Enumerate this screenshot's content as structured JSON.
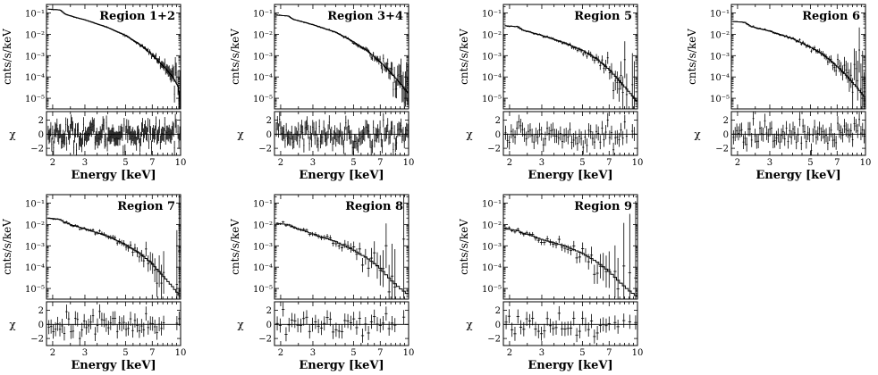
{
  "figure": {
    "xlabel": "Energy [keV]",
    "ylabel_top": "cnts/s/keV",
    "ylabel_bottom": "χ",
    "x_ticks": [
      2,
      3,
      5,
      7,
      10
    ],
    "y_ticks_top": [
      "10⁻⁵",
      "10⁻⁴",
      "10⁻³",
      "10⁻²",
      "10⁻¹"
    ],
    "y_ticks_bottom": [
      "2",
      "0",
      "−2"
    ]
  },
  "chart_data": [
    {
      "type": "scatter",
      "title": "Region 1+2",
      "xlabel": "Energy [keV]",
      "ylabel": "cnts/s/keV",
      "xscale": "log",
      "yscale": "log",
      "xlim": [
        1.85,
        10
      ],
      "ylim_log10": [
        -5.5,
        -0.6
      ],
      "resid_ylim": [
        -3,
        3.2
      ],
      "n_bins": 150,
      "err_scale": 0.7,
      "model_log10": [
        [
          1.9,
          -0.82
        ],
        [
          2.2,
          -0.86
        ],
        [
          2.35,
          -1.06
        ],
        [
          2.6,
          -1.18
        ],
        [
          3,
          -1.32
        ],
        [
          4,
          -1.68
        ],
        [
          5,
          -2.05
        ],
        [
          6,
          -2.48
        ],
        [
          7,
          -2.96
        ],
        [
          8,
          -3.46
        ],
        [
          9,
          -3.95
        ],
        [
          9.7,
          -4.45
        ],
        [
          10,
          -5.3
        ]
      ]
    },
    {
      "type": "scatter",
      "title": "Region 3+4",
      "xlabel": "Energy [keV]",
      "ylabel": "cnts/s/keV",
      "xscale": "log",
      "yscale": "log",
      "xlim": [
        1.85,
        10
      ],
      "ylim_log10": [
        -5.5,
        -0.6
      ],
      "resid_ylim": [
        -3,
        3.2
      ],
      "n_bins": 120,
      "err_scale": 0.8,
      "model_log10": [
        [
          1.9,
          -1.1
        ],
        [
          2.2,
          -1.14
        ],
        [
          2.35,
          -1.3
        ],
        [
          2.6,
          -1.4
        ],
        [
          3,
          -1.55
        ],
        [
          4,
          -1.9
        ],
        [
          5,
          -2.35
        ],
        [
          6,
          -2.8
        ],
        [
          7,
          -3.3
        ],
        [
          8,
          -3.8
        ],
        [
          9,
          -4.3
        ],
        [
          10,
          -4.8
        ]
      ]
    },
    {
      "type": "scatter",
      "title": "Region 5",
      "xlabel": "Energy [keV]",
      "ylabel": "cnts/s/keV",
      "xscale": "log",
      "yscale": "log",
      "xlim": [
        1.85,
        10
      ],
      "ylim_log10": [
        -5.5,
        -0.6
      ],
      "resid_ylim": [
        -3,
        3.2
      ],
      "n_bins": 70,
      "err_scale": 1.0,
      "model_log10": [
        [
          1.9,
          -1.6
        ],
        [
          2.2,
          -1.64
        ],
        [
          2.35,
          -1.8
        ],
        [
          2.6,
          -1.9
        ],
        [
          3,
          -2.05
        ],
        [
          4,
          -2.4
        ],
        [
          5,
          -2.75
        ],
        [
          6,
          -3.15
        ],
        [
          7,
          -3.65
        ],
        [
          8,
          -4.2
        ],
        [
          9,
          -4.7
        ],
        [
          10,
          -5.2
        ]
      ]
    },
    {
      "type": "scatter",
      "title": "Region 6",
      "xlabel": "Energy [keV]",
      "ylabel": "cnts/s/keV",
      "xscale": "log",
      "yscale": "log",
      "xlim": [
        1.85,
        10
      ],
      "ylim_log10": [
        -5.5,
        -0.6
      ],
      "resid_ylim": [
        -3,
        3.2
      ],
      "n_bins": 80,
      "err_scale": 1.0,
      "model_log10": [
        [
          1.9,
          -1.4
        ],
        [
          2.2,
          -1.44
        ],
        [
          2.35,
          -1.62
        ],
        [
          2.6,
          -1.72
        ],
        [
          3,
          -1.85
        ],
        [
          4,
          -2.2
        ],
        [
          5,
          -2.6
        ],
        [
          6,
          -3.0
        ],
        [
          7,
          -3.5
        ],
        [
          8,
          -4.0
        ],
        [
          9,
          -4.5
        ],
        [
          10,
          -5.0
        ]
      ]
    },
    {
      "type": "scatter",
      "title": "Region 7",
      "xlabel": "Energy [keV]",
      "ylabel": "cnts/s/keV",
      "xscale": "log",
      "yscale": "log",
      "xlim": [
        1.85,
        10
      ],
      "ylim_log10": [
        -5.5,
        -0.6
      ],
      "resid_ylim": [
        -3,
        3.2
      ],
      "n_bins": 60,
      "err_scale": 1.2,
      "model_log10": [
        [
          1.9,
          -1.7
        ],
        [
          2.2,
          -1.76
        ],
        [
          2.35,
          -1.92
        ],
        [
          2.6,
          -2.05
        ],
        [
          3,
          -2.2
        ],
        [
          4,
          -2.55
        ],
        [
          5,
          -2.95
        ],
        [
          6,
          -3.35
        ],
        [
          7,
          -3.85
        ],
        [
          8,
          -4.4
        ],
        [
          9,
          -4.9
        ],
        [
          10,
          -5.4
        ]
      ]
    },
    {
      "type": "scatter",
      "title": "Region 8",
      "xlabel": "Energy [keV]",
      "ylabel": "cnts/s/keV",
      "xscale": "log",
      "yscale": "log",
      "xlim": [
        1.85,
        10
      ],
      "ylim_log10": [
        -5.5,
        -0.6
      ],
      "resid_ylim": [
        -3,
        3.2
      ],
      "n_bins": 45,
      "err_scale": 1.4,
      "model_log10": [
        [
          1.9,
          -1.95
        ],
        [
          2.2,
          -2.0
        ],
        [
          2.35,
          -2.15
        ],
        [
          2.6,
          -2.25
        ],
        [
          3,
          -2.45
        ],
        [
          4,
          -2.8
        ],
        [
          5,
          -3.2
        ],
        [
          6,
          -3.6
        ],
        [
          7,
          -4.05
        ],
        [
          8,
          -4.6
        ],
        [
          9,
          -5.0
        ],
        [
          10,
          -5.3
        ]
      ]
    },
    {
      "type": "scatter",
      "title": "Region 9",
      "xlabel": "Energy [keV]",
      "ylabel": "cnts/s/keV",
      "xscale": "log",
      "yscale": "log",
      "xlim": [
        1.85,
        10
      ],
      "ylim_log10": [
        -5.5,
        -0.6
      ],
      "resid_ylim": [
        -3,
        3.2
      ],
      "n_bins": 45,
      "err_scale": 1.4,
      "model_log10": [
        [
          1.9,
          -2.2
        ],
        [
          2.2,
          -2.28
        ],
        [
          2.35,
          -2.4
        ],
        [
          2.6,
          -2.5
        ],
        [
          3,
          -2.7
        ],
        [
          4,
          -3.0
        ],
        [
          5,
          -3.35
        ],
        [
          6,
          -3.75
        ],
        [
          7,
          -4.2
        ],
        [
          8,
          -4.7
        ],
        [
          9,
          -5.1
        ],
        [
          10,
          -5.4
        ]
      ]
    }
  ]
}
